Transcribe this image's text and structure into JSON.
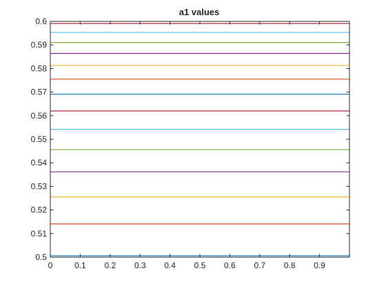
{
  "chart_data": {
    "type": "line",
    "title": "a1 values",
    "xlabel": "",
    "ylabel": "",
    "xlim": [
      0,
      1
    ],
    "ylim": [
      0.5,
      0.6
    ],
    "xticks": [
      0,
      0.1,
      0.2,
      0.3,
      0.4,
      0.5,
      0.6,
      0.7,
      0.8,
      0.9
    ],
    "xtick_labels": [
      "0",
      "0.1",
      "0.2",
      "0.3",
      "0.4",
      "0.5",
      "0.6",
      "0.7",
      "0.8",
      "0.9"
    ],
    "yticks": [
      0.5,
      0.51,
      0.52,
      0.53,
      0.54,
      0.55,
      0.56,
      0.57,
      0.58,
      0.59,
      0.6
    ],
    "ytick_labels": [
      "0.5",
      "0.51",
      "0.52",
      "0.53",
      "0.54",
      "0.55",
      "0.56",
      "0.57",
      "0.58",
      "0.59",
      "0.6"
    ],
    "grid": false,
    "series": [
      {
        "x": [
          0,
          1
        ],
        "y": [
          0.5006,
          0.5006
        ],
        "color": "#0072BD"
      },
      {
        "x": [
          0,
          1
        ],
        "y": [
          0.5141,
          0.5141
        ],
        "color": "#D95319"
      },
      {
        "x": [
          0,
          1
        ],
        "y": [
          0.5255,
          0.5255
        ],
        "color": "#EDB120"
      },
      {
        "x": [
          0,
          1
        ],
        "y": [
          0.5362,
          0.5362
        ],
        "color": "#7E2F8E"
      },
      {
        "x": [
          0,
          1
        ],
        "y": [
          0.5456,
          0.5456
        ],
        "color": "#77AC30"
      },
      {
        "x": [
          0,
          1
        ],
        "y": [
          0.5542,
          0.5542
        ],
        "color": "#4DBEEE"
      },
      {
        "x": [
          0,
          1
        ],
        "y": [
          0.562,
          0.562
        ],
        "color": "#A2142F"
      },
      {
        "x": [
          0,
          1
        ],
        "y": [
          0.5691,
          0.5691
        ],
        "color": "#0072BD"
      },
      {
        "x": [
          0,
          1
        ],
        "y": [
          0.5755,
          0.5755
        ],
        "color": "#D95319"
      },
      {
        "x": [
          0,
          1
        ],
        "y": [
          0.5813,
          0.5813
        ],
        "color": "#EDB120"
      },
      {
        "x": [
          0,
          1
        ],
        "y": [
          0.5864,
          0.5864
        ],
        "color": "#7E2F8E"
      },
      {
        "x": [
          0,
          1
        ],
        "y": [
          0.591,
          0.591
        ],
        "color": "#77AC30"
      },
      {
        "x": [
          0,
          1
        ],
        "y": [
          0.5953,
          0.5953
        ],
        "color": "#4DBEEE"
      },
      {
        "x": [
          0,
          1
        ],
        "y": [
          0.5991,
          0.5991
        ],
        "color": "#A2142F"
      }
    ]
  }
}
